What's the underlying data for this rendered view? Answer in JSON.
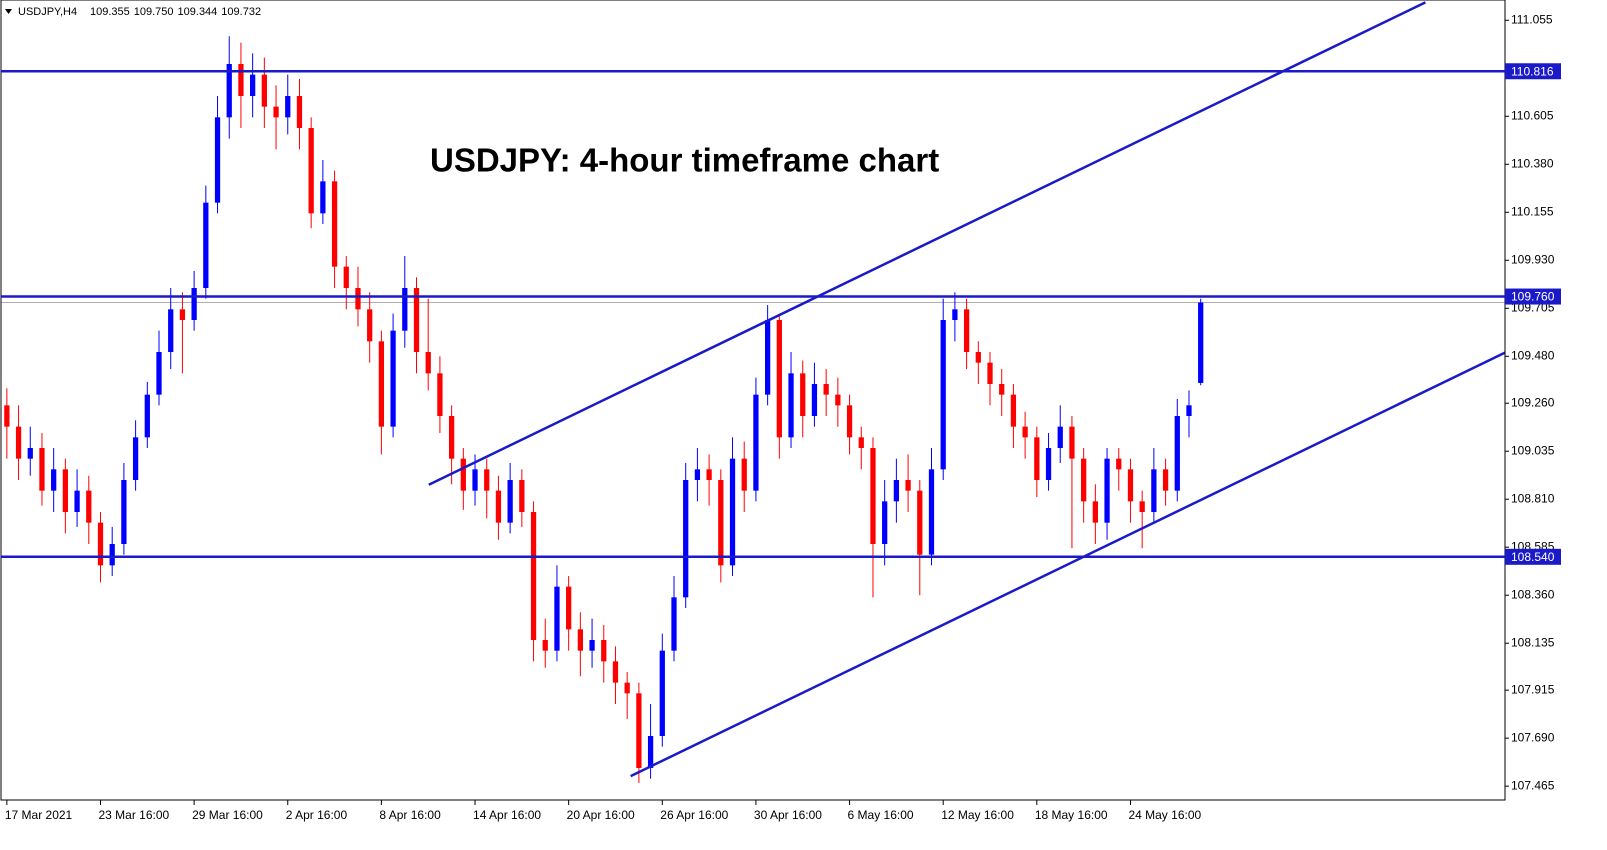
{
  "chart_data": {
    "type": "candlestick",
    "title": "USDJPY: 4-hour timeframe chart",
    "symbol": "USDJPY,H4",
    "quote": [
      "109.355",
      "109.750",
      "109.344",
      "109.732"
    ],
    "open": [
      109.25,
      109.15,
      109.0,
      109.05,
      108.85,
      108.95,
      108.75,
      108.85,
      108.7,
      108.5,
      108.6,
      108.9,
      109.1,
      109.3,
      109.5,
      109.7,
      109.65,
      109.8,
      110.2,
      110.6,
      110.85,
      110.7,
      110.8,
      110.65,
      110.6,
      110.7,
      110.55,
      110.15,
      110.3,
      109.9,
      109.8,
      109.7,
      109.55,
      109.15,
      109.6,
      109.8,
      109.5,
      109.4,
      109.2,
      109.0,
      108.85,
      108.95,
      108.85,
      108.7,
      108.9,
      108.75,
      108.15,
      108.1,
      108.4,
      108.2,
      108.1,
      108.15,
      108.05,
      107.95,
      107.9,
      107.55,
      107.7,
      108.1,
      108.35,
      108.9,
      108.95,
      108.9,
      108.5,
      109.0,
      108.85,
      109.3,
      109.65,
      109.1,
      109.4,
      109.2,
      109.35,
      109.3,
      109.25,
      109.1,
      109.05,
      108.6,
      108.8,
      108.9,
      108.85,
      108.55,
      108.95,
      109.65,
      109.7,
      109.5,
      109.45,
      109.35,
      109.3,
      109.15,
      109.1,
      108.9,
      109.05,
      109.15,
      109.0,
      108.8,
      108.7,
      109.0,
      108.95,
      108.8,
      108.75,
      108.95,
      108.85,
      109.2,
      109.355
    ],
    "high": [
      109.33,
      109.25,
      109.15,
      109.12,
      109.05,
      109.0,
      108.95,
      108.92,
      108.75,
      108.68,
      108.98,
      109.18,
      109.36,
      109.6,
      109.8,
      109.78,
      109.88,
      110.28,
      110.7,
      110.98,
      110.95,
      110.9,
      110.88,
      110.75,
      110.8,
      110.78,
      110.6,
      110.4,
      110.35,
      109.95,
      109.9,
      109.78,
      109.6,
      109.68,
      109.95,
      109.85,
      109.75,
      109.48,
      109.25,
      109.05,
      109.02,
      109.0,
      108.92,
      108.98,
      108.95,
      108.8,
      108.25,
      108.5,
      108.45,
      108.28,
      108.25,
      108.22,
      108.12,
      108.0,
      107.95,
      107.85,
      108.18,
      108.45,
      108.98,
      109.05,
      109.02,
      108.95,
      109.1,
      109.08,
      109.38,
      109.72,
      109.68,
      109.5,
      109.46,
      109.45,
      109.42,
      109.38,
      109.3,
      109.15,
      109.1,
      108.9,
      109.0,
      109.02,
      108.9,
      109.05,
      109.75,
      109.78,
      109.75,
      109.55,
      109.5,
      109.42,
      109.35,
      109.22,
      109.15,
      109.12,
      109.25,
      109.2,
      109.05,
      108.88,
      109.05,
      109.05,
      109.0,
      108.85,
      109.05,
      109.0,
      109.28,
      109.32,
      109.75
    ],
    "low": [
      109.0,
      108.9,
      108.92,
      108.78,
      108.75,
      108.65,
      108.68,
      108.6,
      108.42,
      108.45,
      108.55,
      108.85,
      109.05,
      109.25,
      109.42,
      109.4,
      109.6,
      109.75,
      110.15,
      110.5,
      110.55,
      110.6,
      110.55,
      110.45,
      110.52,
      110.45,
      110.08,
      110.1,
      109.8,
      109.7,
      109.62,
      109.45,
      109.02,
      109.1,
      109.52,
      109.4,
      109.32,
      109.12,
      108.88,
      108.76,
      108.78,
      108.72,
      108.62,
      108.65,
      108.68,
      108.05,
      108.02,
      108.05,
      108.1,
      107.98,
      108.02,
      107.95,
      107.85,
      107.78,
      107.48,
      107.5,
      107.65,
      108.05,
      108.3,
      108.8,
      108.78,
      108.42,
      108.45,
      108.75,
      108.8,
      109.25,
      109.0,
      109.05,
      109.1,
      109.15,
      109.2,
      109.15,
      109.02,
      108.95,
      108.35,
      108.5,
      108.7,
      108.75,
      108.36,
      108.5,
      108.9,
      109.55,
      109.42,
      109.35,
      109.25,
      109.2,
      109.05,
      109.0,
      108.82,
      108.85,
      108.98,
      108.58,
      108.7,
      108.6,
      108.62,
      108.85,
      108.7,
      108.58,
      108.7,
      108.78,
      108.8,
      109.1,
      109.344
    ],
    "close": [
      109.15,
      109.0,
      109.05,
      108.85,
      108.95,
      108.75,
      108.85,
      108.7,
      108.5,
      108.6,
      108.9,
      109.1,
      109.3,
      109.5,
      109.7,
      109.65,
      109.8,
      110.2,
      110.6,
      110.85,
      110.7,
      110.8,
      110.65,
      110.6,
      110.7,
      110.55,
      110.15,
      110.3,
      109.9,
      109.8,
      109.7,
      109.55,
      109.15,
      109.6,
      109.8,
      109.5,
      109.4,
      109.2,
      109.0,
      108.85,
      108.95,
      108.85,
      108.7,
      108.9,
      108.75,
      108.15,
      108.1,
      108.4,
      108.2,
      108.1,
      108.15,
      108.05,
      107.95,
      107.9,
      107.55,
      107.7,
      108.1,
      108.35,
      108.9,
      108.95,
      108.9,
      108.5,
      109.0,
      108.85,
      109.3,
      109.65,
      109.1,
      109.4,
      109.2,
      109.35,
      109.3,
      109.25,
      109.1,
      109.05,
      108.6,
      108.8,
      108.9,
      108.85,
      108.55,
      108.95,
      109.65,
      109.7,
      109.5,
      109.45,
      109.35,
      109.3,
      109.15,
      109.1,
      108.9,
      109.05,
      109.15,
      109.0,
      108.8,
      108.7,
      109.0,
      108.95,
      108.8,
      108.75,
      108.95,
      108.85,
      109.2,
      109.25,
      109.732
    ],
    "bull_color": "#0000ff",
    "bear_color": "#ff0000",
    "line_color": "#1a1ac8",
    "xlim": [
      -0.5,
      128
    ],
    "ylim": [
      107.4,
      111.15
    ],
    "xticks": [
      {
        "value": 0,
        "label": "17 Mar 2021"
      },
      {
        "value": 8,
        "label": "23 Mar 16:00"
      },
      {
        "value": 16,
        "label": "29 Mar 16:00"
      },
      {
        "value": 24,
        "label": "2 Apr 16:00"
      },
      {
        "value": 32,
        "label": "8 Apr 16:00"
      },
      {
        "value": 40,
        "label": "14 Apr 16:00"
      },
      {
        "value": 48,
        "label": "20 Apr 16:00"
      },
      {
        "value": 56,
        "label": "26 Apr 16:00"
      },
      {
        "value": 64,
        "label": "30 Apr 16:00"
      },
      {
        "value": 72,
        "label": "6 May 16:00"
      },
      {
        "value": 80,
        "label": "12 May 16:00"
      },
      {
        "value": 88,
        "label": "18 May 16:00"
      },
      {
        "value": 96,
        "label": "24 May 16:00"
      }
    ],
    "yticks": [
      111.055,
      110.605,
      {
        "value": 110.38,
        "label": "110.380"
      },
      110.155,
      {
        "value": 109.93,
        "label": "109.930"
      },
      109.705,
      {
        "value": 109.48,
        "label": "109.480"
      },
      {
        "value": 109.26,
        "label": "109.260"
      },
      109.035,
      {
        "value": 108.81,
        "label": "108.810"
      },
      108.585,
      {
        "value": 108.36,
        "label": "108.360"
      },
      108.135,
      107.915,
      {
        "value": 107.69,
        "label": "107.690"
      },
      107.465
    ],
    "bid": 109.732,
    "levels": [
      110.816,
      {
        "value": 109.76,
        "label": "109.760"
      },
      {
        "value": 108.54,
        "label": "108.540"
      }
    ],
    "trendlines": [
      {
        "x": [
          36.05,
          121.2
        ],
        "y": [
          108.878,
          111.139
        ]
      },
      {
        "x": [
          53.3,
          128
        ],
        "y": [
          107.512,
          109.497
        ]
      }
    ]
  }
}
